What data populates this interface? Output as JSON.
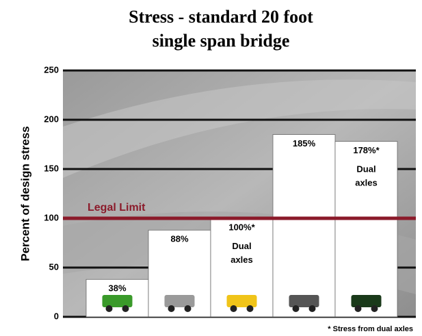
{
  "chart_data": {
    "type": "bar",
    "title": "Stress - standard 20 foot",
    "subtitle": "single span bridge",
    "y_label": "Percent of design stress",
    "categories": [
      null,
      null,
      null,
      null,
      null
    ],
    "values": [
      38,
      88,
      100,
      185,
      178
    ],
    "value_labels": [
      "38%",
      "88%",
      "100%*",
      "185%",
      "178%*"
    ],
    "bar_notes": [
      null,
      null,
      "Dual axles",
      null,
      "Dual axles"
    ],
    "color": "#ffffff",
    "ylim": [
      0,
      250
    ],
    "yticks": [
      0,
      50,
      100,
      150,
      200,
      250
    ],
    "grid": true,
    "reference_line": {
      "value": 100,
      "label": "Legal Limit",
      "color": "#8b1a2a"
    },
    "footnote": "* Stress from dual axles"
  }
}
